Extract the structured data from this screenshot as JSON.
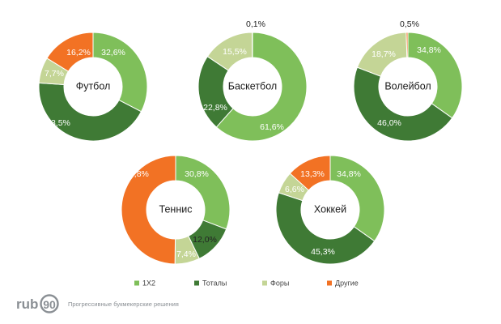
{
  "colors": {
    "1X2": "#7fbf5a",
    "totals": "#3f7a35",
    "handicaps": "#c4d596",
    "other": "#f27224"
  },
  "chart_data": [
    {
      "type": "pie",
      "variant": "donut",
      "title": "Футбол",
      "categories": [
        "1X2",
        "Тоталы",
        "Форы",
        "Другие"
      ],
      "values": [
        32.6,
        43.5,
        7.7,
        16.2
      ],
      "labels": [
        "32,6%",
        "43,5%",
        "7,7%",
        "16,2%"
      ]
    },
    {
      "type": "pie",
      "variant": "donut",
      "title": "Баскетбол",
      "categories": [
        "1X2",
        "Тоталы",
        "Форы",
        "Другие"
      ],
      "values": [
        61.6,
        22.8,
        15.5,
        0.1
      ],
      "labels": [
        "61,6%",
        "22,8%",
        "15,5%",
        "0,1%"
      ]
    },
    {
      "type": "pie",
      "variant": "donut",
      "title": "Волейбол",
      "categories": [
        "1X2",
        "Тоталы",
        "Форы",
        "Другие"
      ],
      "values": [
        34.8,
        46.0,
        18.7,
        0.5
      ],
      "labels": [
        "34,8%",
        "46,0%",
        "18,7%",
        "0,5%"
      ]
    },
    {
      "type": "pie",
      "variant": "donut",
      "title": "Теннис",
      "categories": [
        "1X2",
        "Тоталы",
        "Форы",
        "Другие"
      ],
      "values": [
        30.8,
        12.0,
        7.4,
        49.8
      ],
      "labels": [
        "30,8%",
        "12,0%",
        "7,4%",
        "49,8%"
      ]
    },
    {
      "type": "pie",
      "variant": "donut",
      "title": "Хоккей",
      "categories": [
        "1X2",
        "Тоталы",
        "Форы",
        "Другие"
      ],
      "values": [
        34.8,
        45.3,
        6.6,
        13.3
      ],
      "labels": [
        "34,8%",
        "45,3%",
        "6,6%",
        "13,3%"
      ]
    }
  ],
  "legend": {
    "placement": "bottom",
    "items": [
      {
        "label": "1X2",
        "color_key": "1X2"
      },
      {
        "label": "Тоталы",
        "color_key": "totals"
      },
      {
        "label": "Форы",
        "color_key": "handicaps"
      },
      {
        "label": "Другие",
        "color_key": "other"
      }
    ]
  },
  "brand": {
    "name_prefix": "rub",
    "name_suffix": "90",
    "tagline": "Прогрессивные букмекерские решения"
  }
}
